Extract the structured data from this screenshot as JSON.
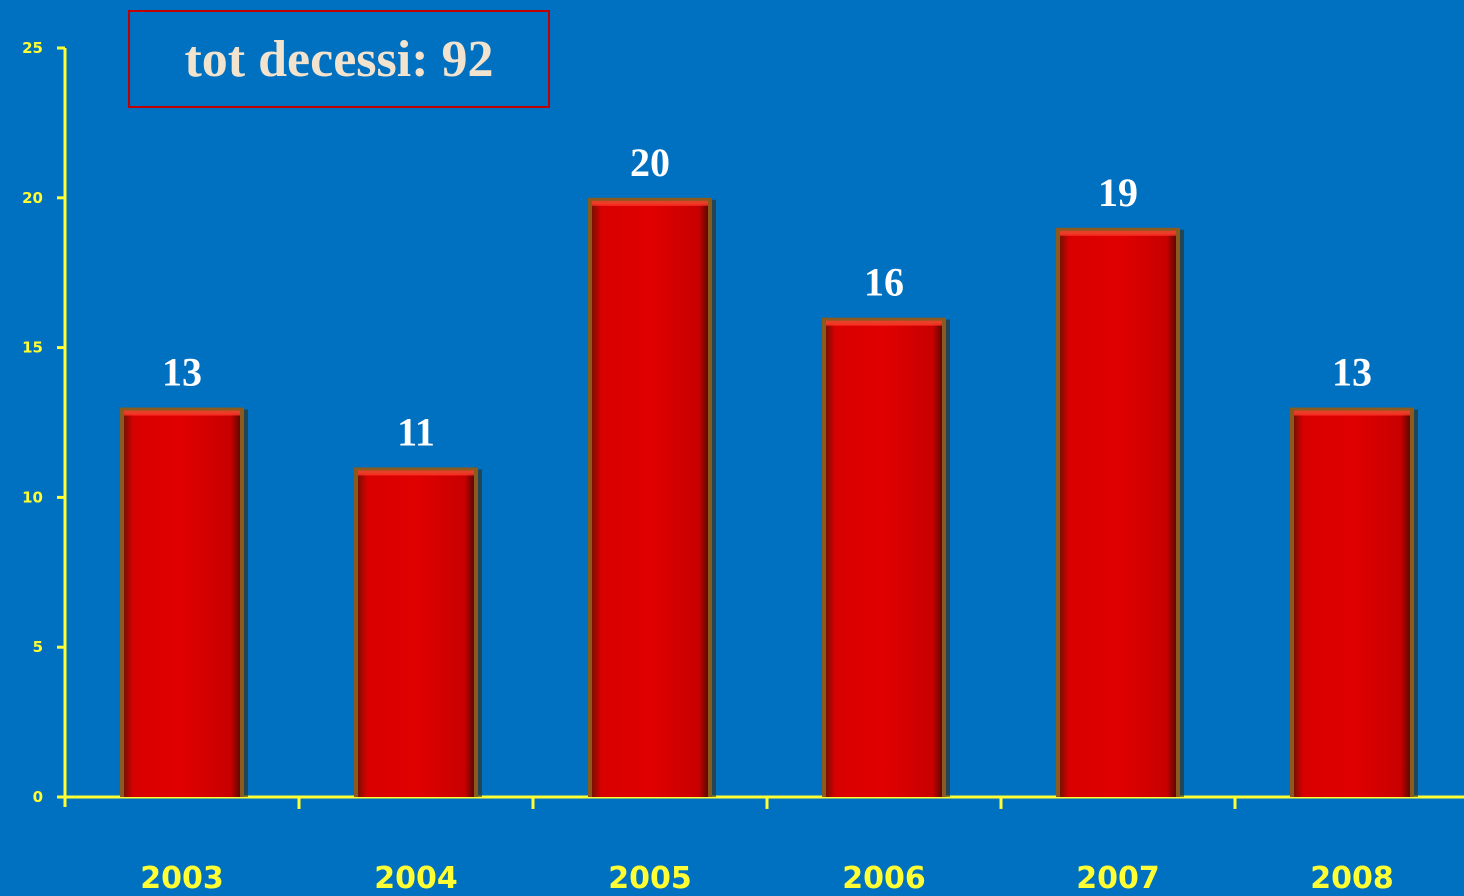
{
  "chart_data": {
    "type": "bar",
    "title": "tot decessi: 92",
    "categories": [
      "2003",
      "2004",
      "2005",
      "2006",
      "2007",
      "2008"
    ],
    "values": [
      13,
      11,
      20,
      16,
      19,
      13
    ],
    "xlabel": "",
    "ylabel": "",
    "ylim": [
      0,
      25
    ],
    "yticks": [
      "0",
      "5",
      "10",
      "15",
      "20",
      "25"
    ],
    "grid": false,
    "legend": "none",
    "colors": {
      "background": "#0070c0",
      "bar": "#d40000",
      "bar_edge": "#8a5a1e",
      "axis": "#ffff33",
      "tick_label": "#ffff33",
      "data_label": "#ffffff",
      "title_text": "#f2e3cf",
      "title_border": "#c00000"
    }
  }
}
